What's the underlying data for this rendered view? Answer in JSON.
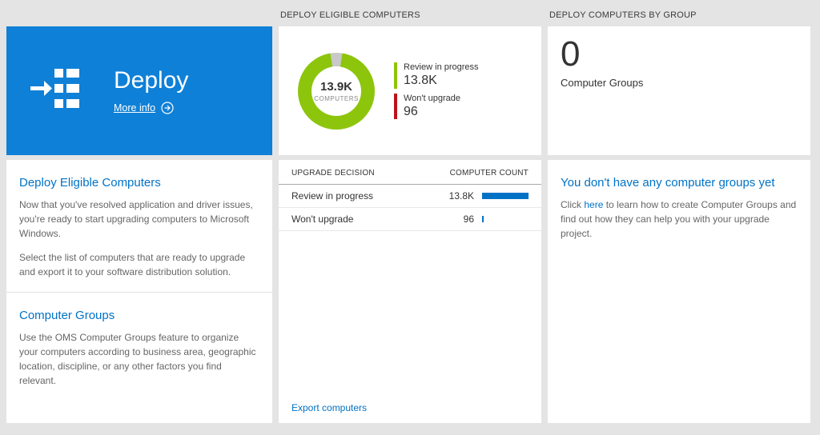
{
  "colors": {
    "accent_blue": "#0072c6",
    "tile_blue": "#0f80d7",
    "chart_green": "#8dc50c",
    "chart_red": "#ba141a",
    "background": "#e4e4e4"
  },
  "columns": {
    "left": {
      "tile": {
        "title": "Deploy",
        "more_info_label": "More info"
      },
      "sections": [
        {
          "heading": "Deploy Eligible Computers",
          "paragraphs": [
            "Now that you've resolved application and driver issues, you're ready to start upgrading computers to Microsoft Windows.",
            "Select the list of computers that are ready to upgrade and export it to your software distribution solution."
          ]
        },
        {
          "heading": "Computer Groups",
          "paragraphs": [
            "Use the OMS Computer Groups feature to organize your computers according to business area, geographic location, discipline, or any other factors you find relevant."
          ]
        }
      ]
    },
    "middle": {
      "header": "DEPLOY ELIGIBLE COMPUTERS",
      "donut": {
        "value": "13.9K",
        "label": "COMPUTERS"
      },
      "legend": [
        {
          "label": "Review in progress",
          "value": "13.8K",
          "color": "#8dc50c"
        },
        {
          "label": "Won't upgrade",
          "value": "96",
          "color": "#ba141a"
        }
      ],
      "table": {
        "headers": [
          "UPGRADE DECISION",
          "COMPUTER COUNT"
        ],
        "bar_color": "#0072c6",
        "rows": [
          {
            "label": "Review in progress",
            "value": "13.8K",
            "bar_pct": 100
          },
          {
            "label": "Won't upgrade",
            "value": "96",
            "bar_pct": 3
          }
        ]
      },
      "footer_link": "Export computers"
    },
    "right": {
      "header": "DEPLOY COMPUTERS BY GROUP",
      "tile": {
        "count": "0",
        "label": "Computer Groups"
      },
      "section": {
        "heading": "You don't have any computer groups yet",
        "text_before": "Click ",
        "link": "here",
        "text_after": " to learn how to create Computer Groups and find out how they can help you with your upgrade project."
      }
    }
  },
  "chart_data": {
    "type": "pie",
    "title": "DEPLOY ELIGIBLE COMPUTERS",
    "center_value": "13.9K",
    "center_label": "COMPUTERS",
    "slices": [
      {
        "label": "Review in progress",
        "value": 13800,
        "display": "13.8K",
        "color": "#8dc50c"
      },
      {
        "label": "Won't upgrade",
        "value": 96,
        "display": "96",
        "color": "#ba141a"
      }
    ],
    "legend_position": "right",
    "donut_style": {
      "ring_color": "#8dc50c",
      "gap_color": "#c9c9c9",
      "gap_start_deg": -9,
      "gap_sweep_deg": 18
    }
  }
}
